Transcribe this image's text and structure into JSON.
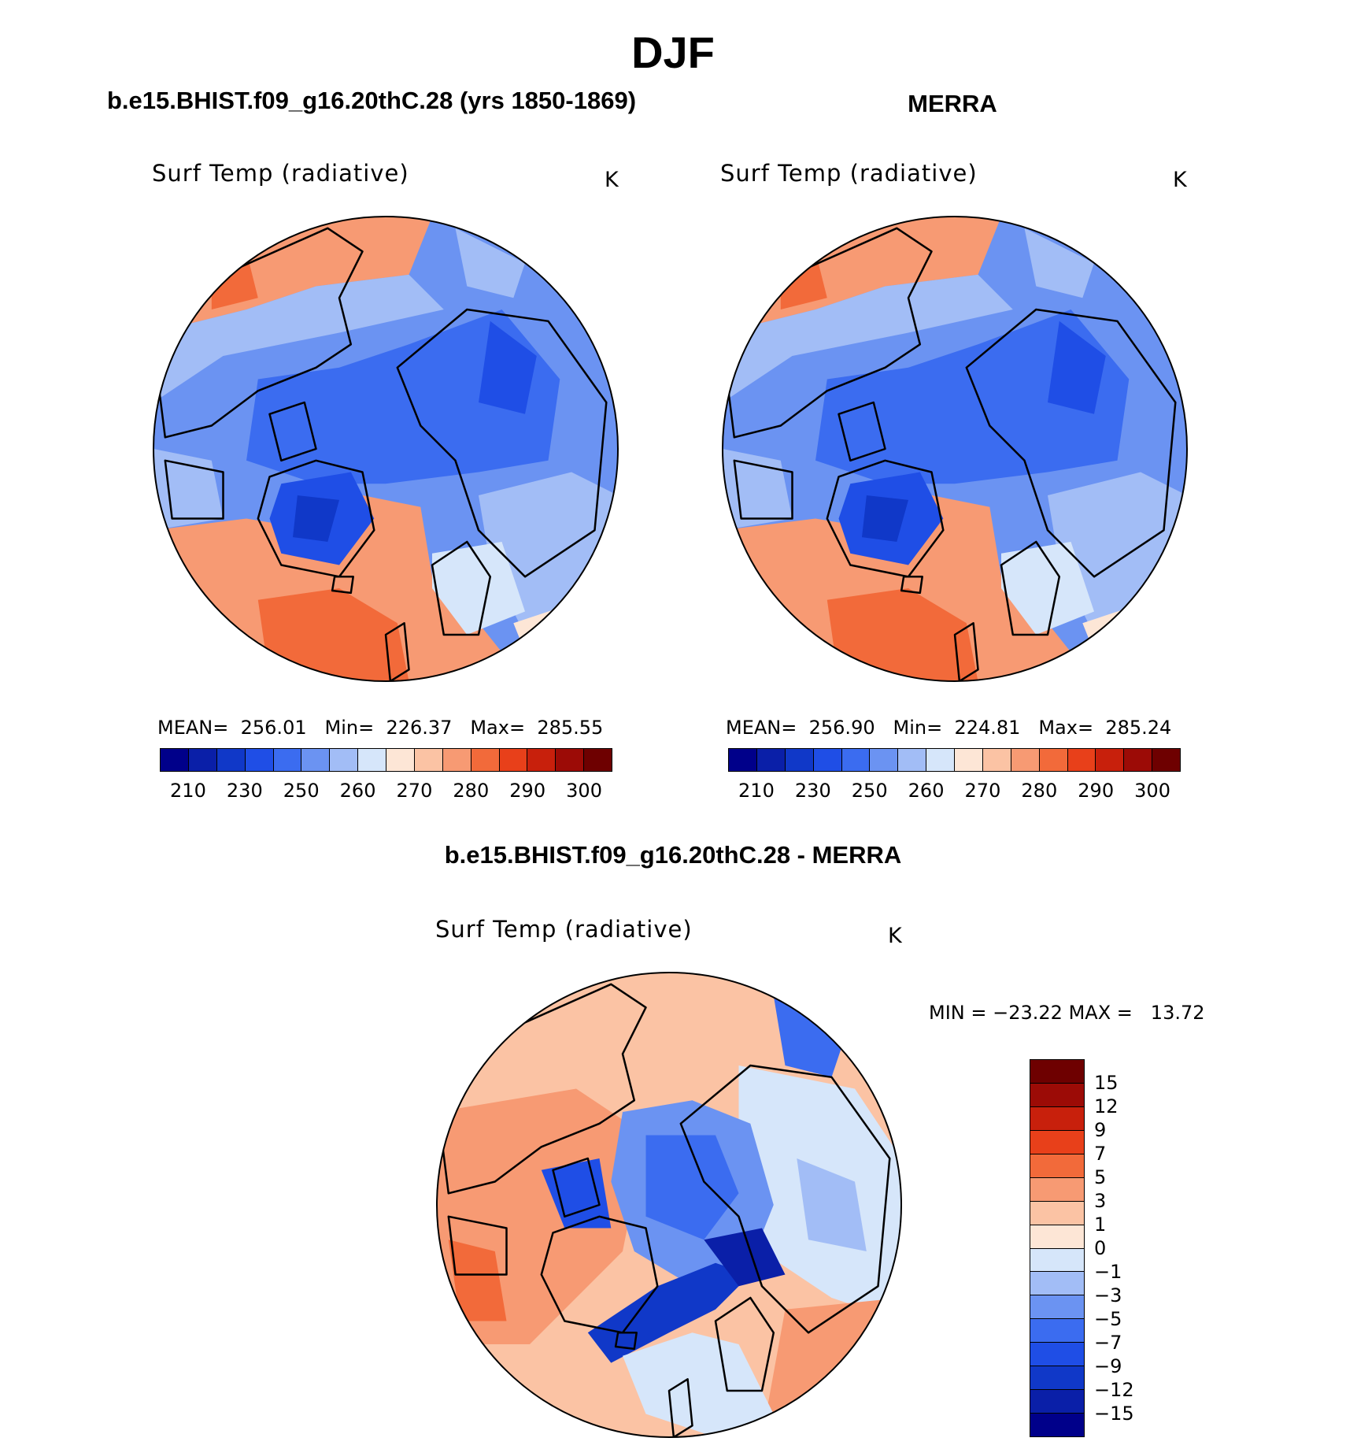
{
  "figure": {
    "title": "DJF",
    "variable": "Surf Temp (radiative)",
    "units": "K"
  },
  "chart_data": [
    {
      "type": "heatmap",
      "projection": "north-polar-stereographic",
      "title": "b.e15.BHIST.f09_g16.20thC.28 (yrs 1850-1869)",
      "variable": "Surf Temp (radiative)",
      "units": "K",
      "stats": {
        "mean_label": "MEAN=",
        "mean": "256.01",
        "min_label": "Min=",
        "min": "226.37",
        "max_label": "Max=",
        "max": "285.55"
      },
      "colorbar": {
        "levels": [
          210,
          220,
          230,
          240,
          250,
          255,
          260,
          265,
          270,
          275,
          280,
          285,
          290,
          295,
          300
        ],
        "tick_labels": [
          "210",
          "230",
          "250",
          "260",
          "270",
          "280",
          "290",
          "300"
        ],
        "colors": [
          "#00008a",
          "#0a1fa8",
          "#1038c8",
          "#1f4ee6",
          "#3b6cf0",
          "#6b93f2",
          "#a2bdf6",
          "#d6e6fa",
          "#fde6d6",
          "#fbc3a4",
          "#f79a73",
          "#f26a3a",
          "#e8401a",
          "#c8200c",
          "#9c0b06",
          "#6e0000"
        ]
      }
    },
    {
      "type": "heatmap",
      "projection": "north-polar-stereographic",
      "title": "MERRA",
      "variable": "Surf Temp (radiative)",
      "units": "K",
      "stats": {
        "mean_label": "MEAN=",
        "mean": "256.90",
        "min_label": "Min=",
        "min": "224.81",
        "max_label": "Max=",
        "max": "285.24"
      },
      "colorbar": {
        "levels": [
          210,
          220,
          230,
          240,
          250,
          255,
          260,
          265,
          270,
          275,
          280,
          285,
          290,
          295,
          300
        ],
        "tick_labels": [
          "210",
          "230",
          "250",
          "260",
          "270",
          "280",
          "290",
          "300"
        ],
        "colors": [
          "#00008a",
          "#0a1fa8",
          "#1038c8",
          "#1f4ee6",
          "#3b6cf0",
          "#6b93f2",
          "#a2bdf6",
          "#d6e6fa",
          "#fde6d6",
          "#fbc3a4",
          "#f79a73",
          "#f26a3a",
          "#e8401a",
          "#c8200c",
          "#9c0b06",
          "#6e0000"
        ]
      }
    },
    {
      "type": "heatmap",
      "projection": "north-polar-stereographic",
      "title": "b.e15.BHIST.f09_g16.20thC.28 - MERRA",
      "variable": "Surf Temp (radiative)",
      "units": "K",
      "stats": {
        "min_label": "MIN =",
        "min": "−23.22",
        "max_label": "MAX =",
        "max": "13.72"
      },
      "colorbar": {
        "orientation": "vertical",
        "levels": [
          15,
          12,
          9,
          7,
          5,
          3,
          1,
          0,
          -1,
          -3,
          -5,
          -7,
          -9,
          -12,
          -15
        ],
        "tick_labels": [
          "15",
          "12",
          "9",
          "7",
          "5",
          "3",
          "1",
          "0",
          "−1",
          "−3",
          "−5",
          "−7",
          "−9",
          "−12",
          "−15"
        ],
        "colors": [
          "#6e0000",
          "#9c0b06",
          "#c8200c",
          "#e8401a",
          "#f26a3a",
          "#f79a73",
          "#fbc3a4",
          "#fde6d6",
          "#d6e6fa",
          "#a2bdf6",
          "#6b93f2",
          "#3b6cf0",
          "#1f4ee6",
          "#1038c8",
          "#0a1fa8",
          "#00008a"
        ]
      }
    }
  ]
}
